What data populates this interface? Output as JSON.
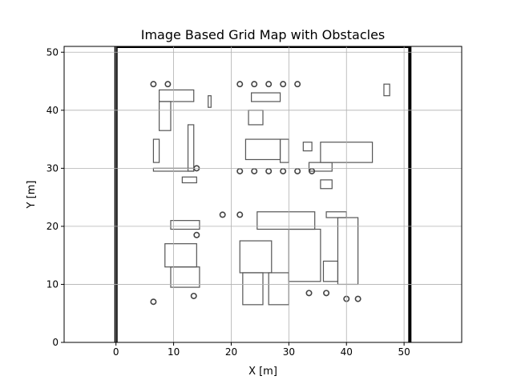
{
  "chart_data": {
    "type": "heatmap",
    "title": "Image Based Grid Map with Obstacles",
    "xlabel": "X [m]",
    "ylabel": "Y [m]",
    "xlim": [
      -9,
      60
    ],
    "ylim": [
      0,
      51
    ],
    "xticks": [
      0,
      10,
      20,
      30,
      40,
      50
    ],
    "yticks": [
      0,
      10,
      20,
      30,
      40,
      50
    ],
    "grid": true,
    "map_extent": {
      "x": [
        0,
        51
      ],
      "y": [
        0,
        51
      ]
    },
    "obstacles": {
      "rects": [
        [
          7.5,
          41.5,
          13.5,
          43.5
        ],
        [
          7.5,
          36.5,
          9.5,
          41.5
        ],
        [
          12.5,
          29.5,
          13.5,
          37.5
        ],
        [
          6.5,
          31.0,
          7.5,
          35.0
        ],
        [
          6.5,
          29.5,
          13.5,
          30.0
        ],
        [
          23.5,
          41.5,
          28.5,
          43.0
        ],
        [
          23.0,
          37.5,
          25.5,
          40.0
        ],
        [
          22.5,
          31.5,
          28.5,
          35.0
        ],
        [
          28.5,
          31.0,
          30.0,
          35.0
        ],
        [
          35.5,
          31.0,
          44.5,
          34.5
        ],
        [
          32.5,
          33.0,
          34.0,
          34.5
        ],
        [
          33.5,
          29.5,
          37.5,
          31.0
        ],
        [
          35.5,
          26.5,
          37.5,
          28.0
        ],
        [
          11.5,
          27.5,
          14.0,
          28.5
        ],
        [
          9.5,
          19.5,
          14.5,
          21.0
        ],
        [
          8.5,
          13.0,
          14.0,
          17.0
        ],
        [
          9.5,
          9.5,
          14.5,
          13.0
        ],
        [
          24.5,
          19.5,
          34.5,
          22.5
        ],
        [
          21.5,
          12.0,
          27.0,
          17.5
        ],
        [
          22.0,
          6.5,
          25.5,
          12.0
        ],
        [
          26.5,
          6.5,
          30.0,
          12.0
        ],
        [
          30.0,
          10.5,
          35.5,
          19.5
        ],
        [
          36.0,
          10.5,
          38.5,
          14.0
        ],
        [
          38.5,
          10.0,
          42.0,
          21.5
        ],
        [
          36.5,
          21.5,
          40.0,
          22.5
        ],
        [
          46.5,
          42.5,
          47.5,
          44.5
        ],
        [
          16.0,
          40.5,
          16.5,
          42.5
        ]
      ],
      "circles": [
        [
          6.5,
          44.5
        ],
        [
          9.0,
          44.5
        ],
        [
          21.5,
          44.5
        ],
        [
          24.0,
          44.5
        ],
        [
          26.5,
          44.5
        ],
        [
          29.0,
          44.5
        ],
        [
          31.5,
          44.5
        ],
        [
          21.5,
          29.5
        ],
        [
          24.0,
          29.5
        ],
        [
          26.5,
          29.5
        ],
        [
          29.0,
          29.5
        ],
        [
          31.5,
          29.5
        ],
        [
          34.0,
          29.5
        ],
        [
          14.0,
          30.0
        ],
        [
          14.0,
          18.5
        ],
        [
          6.5,
          7.0
        ],
        [
          13.5,
          8.0
        ],
        [
          40.0,
          7.5
        ],
        [
          42.0,
          7.5
        ],
        [
          33.5,
          8.5
        ],
        [
          36.5,
          8.5
        ],
        [
          18.5,
          22.0
        ],
        [
          21.5,
          22.0
        ]
      ]
    }
  }
}
